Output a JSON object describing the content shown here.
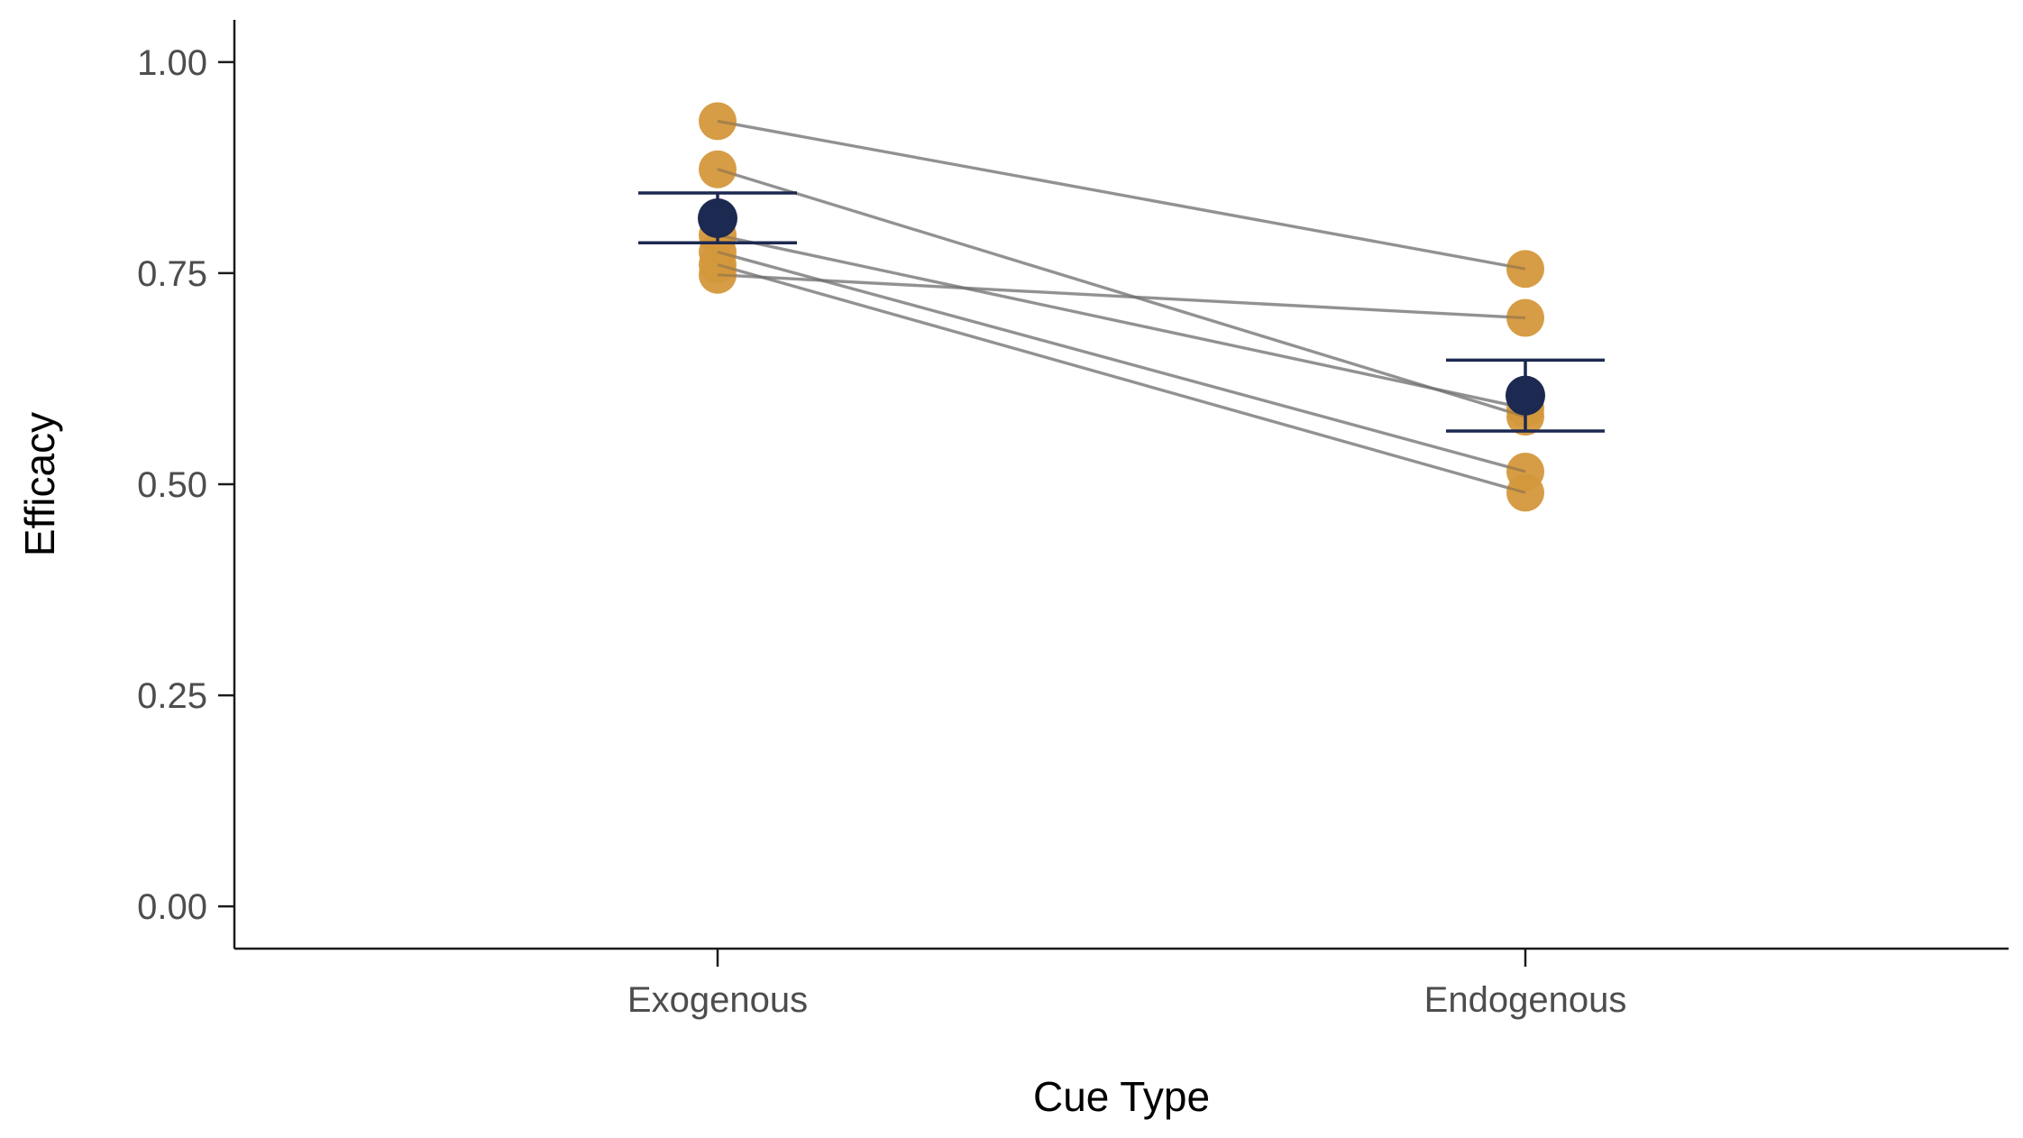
{
  "chart_data": {
    "type": "scatter",
    "title": "",
    "xlabel": "Cue Type",
    "ylabel": "Efficacy",
    "categories": [
      "Exogenous",
      "Endogenous"
    ],
    "ylim": [
      -0.05,
      1.05
    ],
    "yticks": [
      0.0,
      0.25,
      0.5,
      0.75,
      1.0
    ],
    "ytick_labels": [
      "0.00",
      "0.25",
      "0.50",
      "0.75",
      "1.00"
    ],
    "grid": false,
    "legend": "none",
    "subjects": [
      {
        "values": [
          0.93,
          0.755
        ]
      },
      {
        "values": [
          0.873,
          0.58
        ]
      },
      {
        "values": [
          0.795,
          0.59
        ]
      },
      {
        "values": [
          0.775,
          0.515
        ]
      },
      {
        "values": [
          0.76,
          0.49
        ]
      },
      {
        "values": [
          0.748,
          0.697
        ]
      }
    ],
    "summary": [
      {
        "category": "Exogenous",
        "mean": 0.815,
        "lower": 0.786,
        "upper": 0.845
      },
      {
        "category": "Endogenous",
        "mean": 0.605,
        "lower": 0.563,
        "upper": 0.647
      }
    ],
    "colors": {
      "individual": "#D4983C",
      "summary": "#1C2951",
      "connector": "#9e9e9e",
      "axis": "#1a1a1a"
    }
  }
}
